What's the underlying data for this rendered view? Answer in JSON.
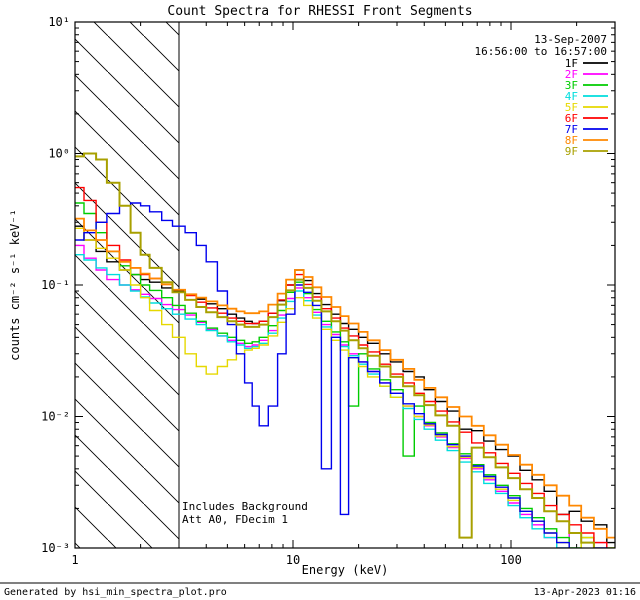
{
  "title": "Count Spectra for RHESSI Front Segments",
  "annotations": {
    "date": "13-Sep-2007",
    "time_range": "16:56:00 to 16:57:00",
    "includes_background": "Includes Background",
    "att_line": "Att A0, FDecim 1"
  },
  "footer": {
    "generated_by": "Generated by hsi_min_spectra_plot.pro",
    "timestamp": "13-Apr-2023 01:16"
  },
  "chart_data": {
    "type": "line",
    "title": "Count Spectra for RHESSI Front Segments",
    "legend_position": "top-right",
    "grid": false,
    "x_axis": {
      "label": "Energy (keV)",
      "scale": "log",
      "range": [
        1,
        300
      ],
      "major_ticks": [
        1,
        10,
        100
      ],
      "tick_labels": [
        "1",
        "10",
        "100"
      ],
      "minor_ticks": [
        2,
        3,
        4,
        5,
        6,
        7,
        8,
        9,
        20,
        30,
        40,
        50,
        60,
        70,
        80,
        90,
        200,
        300
      ]
    },
    "y_axis": {
      "label": "counts cm⁻² s⁻¹ keV⁻¹",
      "scale": "log",
      "range": [
        0.001,
        10
      ],
      "major_ticks": [
        0.001,
        0.01,
        0.1,
        1,
        10
      ],
      "tick_labels": [
        "10⁻³",
        "10⁻²",
        "10⁻¹",
        "10⁰",
        "10¹"
      ],
      "minor_ticks": [
        0.002,
        0.003,
        0.004,
        0.005,
        0.006,
        0.007,
        0.008,
        0.009,
        0.02,
        0.03,
        0.04,
        0.05,
        0.06,
        0.07,
        0.08,
        0.09,
        0.2,
        0.3,
        0.4,
        0.5,
        0.6,
        0.7,
        0.8,
        0.9,
        2,
        3,
        4,
        5,
        6,
        7,
        8,
        9
      ]
    },
    "hatched_region": {
      "x_start": 1,
      "x_end": 3
    },
    "x": [
      1.0,
      1.1,
      1.25,
      1.4,
      1.6,
      1.8,
      2.0,
      2.2,
      2.5,
      2.8,
      3.2,
      3.6,
      4.0,
      4.5,
      5.0,
      5.5,
      6.0,
      6.5,
      7.0,
      7.7,
      8.5,
      9.3,
      10.2,
      11.2,
      12.3,
      13.5,
      15,
      16.5,
      18,
      20,
      22,
      25,
      28,
      32,
      36,
      40,
      45,
      51,
      58,
      66,
      75,
      85,
      97,
      110,
      125,
      142,
      162,
      185,
      210,
      240,
      275,
      310
    ],
    "series": [
      {
        "name": "1F",
        "color": "#000000",
        "line_width": 1.4,
        "values": [
          0.28,
          0.22,
          0.18,
          0.15,
          0.13,
          0.12,
          0.11,
          0.105,
          0.095,
          0.09,
          0.085,
          0.078,
          0.072,
          0.066,
          0.06,
          0.056,
          0.053,
          0.051,
          0.053,
          0.061,
          0.076,
          0.1,
          0.13,
          0.108,
          0.086,
          0.071,
          0.06,
          0.051,
          0.046,
          0.04,
          0.036,
          0.03,
          0.026,
          0.022,
          0.02,
          0.016,
          0.013,
          0.011,
          0.008,
          0.0078,
          0.0065,
          0.0056,
          0.005,
          0.0039,
          0.0033,
          0.0027,
          0.0018,
          0.0019,
          0.0016,
          0.0015,
          0.0011,
          0.0009
        ]
      },
      {
        "name": "2F",
        "color": "#ff00ff",
        "line_width": 1.4,
        "values": [
          0.2,
          0.16,
          0.13,
          0.11,
          0.1,
          0.092,
          0.085,
          0.079,
          0.071,
          0.065,
          0.059,
          0.052,
          0.046,
          0.041,
          0.038,
          0.036,
          0.034,
          0.035,
          0.038,
          0.045,
          0.059,
          0.079,
          0.095,
          0.08,
          0.062,
          0.05,
          0.042,
          0.035,
          0.03,
          0.026,
          0.022,
          0.018,
          0.015,
          0.012,
          0.01,
          0.0085,
          0.007,
          0.0058,
          0.0048,
          0.004,
          0.0033,
          0.0027,
          0.0022,
          0.0018,
          0.0015,
          0.0012,
          0.001,
          0.0013,
          0.0009,
          0.0011,
          0.0008,
          0.001
        ]
      },
      {
        "name": "3F",
        "color": "#00cc00",
        "line_width": 1.4,
        "values": [
          0.42,
          0.35,
          0.25,
          0.18,
          0.14,
          0.12,
          0.1,
          0.091,
          0.08,
          0.07,
          0.061,
          0.053,
          0.047,
          0.043,
          0.04,
          0.038,
          0.036,
          0.037,
          0.04,
          0.049,
          0.064,
          0.088,
          0.105,
          0.086,
          0.065,
          0.053,
          0.044,
          0.037,
          0.012,
          0.03,
          0.023,
          0.019,
          0.016,
          0.005,
          0.012,
          0.009,
          0.0075,
          0.0062,
          0.0052,
          0.0043,
          0.0036,
          0.003,
          0.0025,
          0.002,
          0.0017,
          0.0014,
          0.0012,
          0.001,
          0.0012,
          0.0009,
          0.001,
          0.0008
        ]
      },
      {
        "name": "4F",
        "color": "#00dddd",
        "line_width": 1.4,
        "values": [
          0.17,
          0.155,
          0.135,
          0.12,
          0.1,
          0.09,
          0.081,
          0.073,
          0.066,
          0.06,
          0.055,
          0.05,
          0.045,
          0.041,
          0.037,
          0.035,
          0.033,
          0.034,
          0.036,
          0.043,
          0.056,
          0.075,
          0.09,
          0.076,
          0.059,
          0.048,
          0.04,
          0.034,
          0.029,
          0.025,
          0.021,
          0.017,
          0.014,
          0.0115,
          0.0095,
          0.008,
          0.0066,
          0.0055,
          0.0045,
          0.0038,
          0.0031,
          0.0026,
          0.0021,
          0.0017,
          0.0014,
          0.0012,
          0.001,
          0.0009,
          0.0011,
          0.0008,
          0.0009,
          0.0007
        ]
      },
      {
        "name": "5F",
        "color": "#e6d800",
        "line_width": 1.4,
        "values": [
          0.27,
          0.22,
          0.19,
          0.16,
          0.13,
          0.1,
          0.08,
          0.064,
          0.05,
          0.04,
          0.03,
          0.024,
          0.021,
          0.024,
          0.027,
          0.03,
          0.032,
          0.033,
          0.035,
          0.041,
          0.052,
          0.066,
          0.08,
          0.07,
          0.056,
          0.046,
          0.038,
          0.032,
          0.028,
          0.024,
          0.02,
          0.017,
          0.014,
          0.012,
          0.01,
          0.0086,
          0.0071,
          0.0059,
          0.0049,
          0.0041,
          0.0034,
          0.0028,
          0.0023,
          0.0019,
          0.0016,
          0.0013,
          0.0011,
          0.0009,
          0.0012,
          0.0008,
          0.001,
          0.0007
        ]
      },
      {
        "name": "6F",
        "color": "#ff0000",
        "line_width": 1.4,
        "values": [
          0.55,
          0.44,
          0.3,
          0.2,
          0.155,
          0.135,
          0.12,
          0.112,
          0.101,
          0.092,
          0.083,
          0.074,
          0.067,
          0.061,
          0.056,
          0.053,
          0.051,
          0.051,
          0.053,
          0.061,
          0.077,
          0.1,
          0.12,
          0.101,
          0.081,
          0.066,
          0.056,
          0.047,
          0.041,
          0.035,
          0.031,
          0.025,
          0.021,
          0.018,
          0.015,
          0.013,
          0.011,
          0.0091,
          0.0076,
          0.0063,
          0.0053,
          0.0044,
          0.0037,
          0.0031,
          0.0026,
          0.0021,
          0.0018,
          0.0015,
          0.0013,
          0.0011,
          0.0009,
          0.0008
        ]
      },
      {
        "name": "7F",
        "color": "#0000ee",
        "line_width": 1.4,
        "values": [
          0.22,
          0.25,
          0.3,
          0.35,
          0.4,
          0.42,
          0.4,
          0.36,
          0.31,
          0.28,
          0.25,
          0.2,
          0.15,
          0.09,
          0.05,
          0.03,
          0.018,
          0.012,
          0.0085,
          0.012,
          0.03,
          0.06,
          0.1,
          0.088,
          0.07,
          0.004,
          0.04,
          0.0018,
          0.028,
          0.026,
          0.022,
          0.018,
          0.015,
          0.0125,
          0.0105,
          0.0088,
          0.0073,
          0.0061,
          0.005,
          0.0042,
          0.0035,
          0.0029,
          0.0024,
          0.0019,
          0.0016,
          0.0013,
          0.0011,
          0.0009,
          0.0008,
          0.001,
          0.0007,
          0.0009
        ]
      },
      {
        "name": "8F",
        "color": "#ff8800",
        "line_width": 1.8,
        "values": [
          0.32,
          0.26,
          0.22,
          0.18,
          0.15,
          0.135,
          0.122,
          0.112,
          0.101,
          0.092,
          0.085,
          0.08,
          0.075,
          0.07,
          0.066,
          0.063,
          0.061,
          0.061,
          0.063,
          0.071,
          0.086,
          0.11,
          0.13,
          0.115,
          0.096,
          0.081,
          0.068,
          0.058,
          0.051,
          0.044,
          0.038,
          0.032,
          0.027,
          0.023,
          0.019,
          0.0165,
          0.014,
          0.0118,
          0.01,
          0.0085,
          0.0072,
          0.0061,
          0.0051,
          0.0043,
          0.0036,
          0.003,
          0.0025,
          0.0021,
          0.0017,
          0.0014,
          0.0012,
          0.001
        ]
      },
      {
        "name": "9F",
        "color": "#a8a000",
        "line_width": 2.0,
        "values": [
          0.95,
          1.0,
          0.9,
          0.6,
          0.4,
          0.25,
          0.17,
          0.135,
          0.105,
          0.088,
          0.077,
          0.068,
          0.062,
          0.057,
          0.053,
          0.05,
          0.048,
          0.048,
          0.05,
          0.057,
          0.071,
          0.091,
          0.11,
          0.095,
          0.076,
          0.063,
          0.053,
          0.045,
          0.038,
          0.033,
          0.029,
          0.024,
          0.02,
          0.017,
          0.0145,
          0.0122,
          0.0102,
          0.0085,
          0.0012,
          0.0058,
          0.0049,
          0.0041,
          0.0034,
          0.0028,
          0.0024,
          0.0019,
          0.0016,
          0.0013,
          0.0011,
          0.0009,
          0.0008,
          0.0007
        ]
      }
    ]
  }
}
